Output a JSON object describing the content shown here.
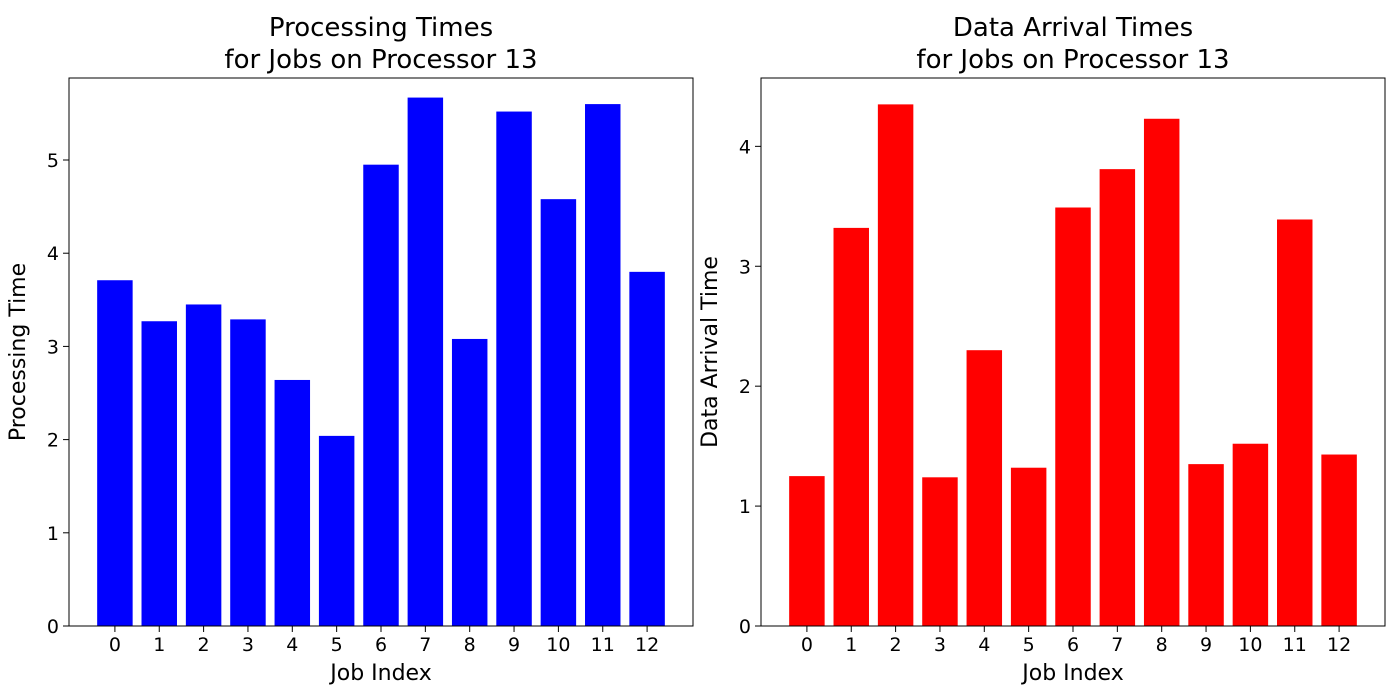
{
  "chart_data": [
    {
      "type": "bar",
      "title_lines": [
        "Processing Times",
        "for Jobs on Processor 13"
      ],
      "xlabel": "Job Index",
      "ylabel": "Processing Time",
      "categories": [
        "0",
        "1",
        "2",
        "3",
        "4",
        "5",
        "6",
        "7",
        "8",
        "9",
        "10",
        "11",
        "12"
      ],
      "values": [
        3.71,
        3.27,
        3.45,
        3.29,
        2.64,
        2.04,
        4.95,
        5.67,
        3.08,
        5.52,
        4.58,
        5.6,
        3.8
      ],
      "ylim": [
        0,
        5.88
      ],
      "yticks": [
        0,
        1,
        2,
        3,
        4,
        5
      ],
      "color": "#0000ff",
      "grid": false,
      "legend": false
    },
    {
      "type": "bar",
      "title_lines": [
        "Data Arrival Times",
        "for Jobs on Processor 13"
      ],
      "xlabel": "Job Index",
      "ylabel": "Data Arrival Time",
      "categories": [
        "0",
        "1",
        "2",
        "3",
        "4",
        "5",
        "6",
        "7",
        "8",
        "9",
        "10",
        "11",
        "12"
      ],
      "values": [
        1.25,
        3.32,
        4.35,
        1.24,
        2.3,
        1.32,
        3.49,
        3.81,
        4.23,
        1.35,
        1.52,
        3.39,
        1.43
      ],
      "ylim": [
        0,
        4.57
      ],
      "yticks": [
        0,
        1,
        2,
        3,
        4
      ],
      "color": "#ff0000",
      "grid": false,
      "legend": false
    }
  ]
}
